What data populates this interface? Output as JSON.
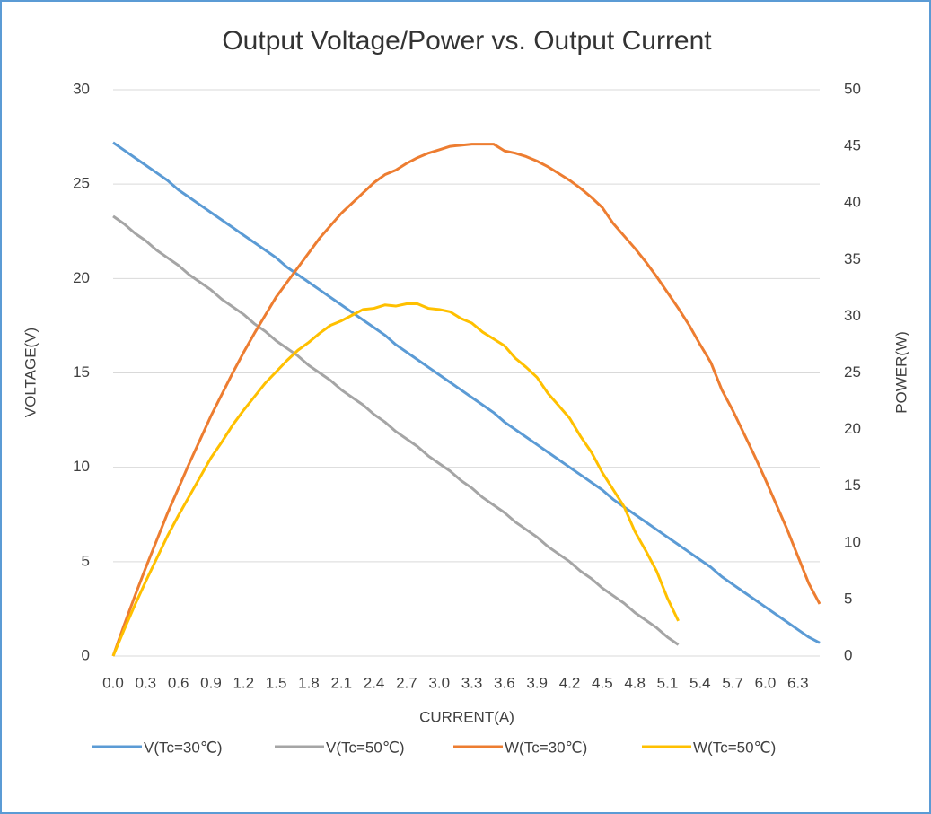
{
  "chart_data": {
    "type": "line",
    "title": "Output Voltage/Power vs. Output Current",
    "x_label": "CURRENT(A)",
    "y_label": "VOLTAGE(V)",
    "y2_label": "POWER(W)",
    "categories": [
      "0.0",
      null,
      null,
      "0.3",
      null,
      null,
      "0.6",
      null,
      null,
      "0.9",
      null,
      null,
      "1.2",
      null,
      null,
      "1.5",
      null,
      null,
      "1.8",
      null,
      null,
      "2.1",
      null,
      null,
      "2.4",
      null,
      null,
      "2.7",
      null,
      null,
      "3.0",
      null,
      null,
      "3.3",
      null,
      null,
      "3.6",
      null,
      null,
      "3.9",
      null,
      null,
      "4.2",
      null,
      null,
      "4.5",
      null,
      null,
      "4.8",
      null,
      null,
      "5.1",
      null,
      null,
      "5.4",
      null,
      null,
      "5.7",
      null,
      null,
      "6.0",
      null,
      null,
      "6.3",
      null,
      null
    ],
    "ylim": [
      0,
      30
    ],
    "yticks": [
      0,
      5,
      10,
      15,
      20,
      25,
      30
    ],
    "y2lim": [
      0,
      50
    ],
    "y2ticks": [
      0,
      5,
      10,
      15,
      20,
      25,
      30,
      35,
      40,
      45,
      50
    ],
    "grid": true,
    "legend": "bottom",
    "series": [
      {
        "name": "V(Tc=30℃)",
        "color": "#5b9bd5",
        "values": [
          27.2,
          26.8,
          26.4,
          26.0,
          25.6,
          25.2,
          24.7,
          24.3,
          23.9,
          23.5,
          23.1,
          22.7,
          22.3,
          21.9,
          21.5,
          21.1,
          20.6,
          20.2,
          19.8,
          19.4,
          19.0,
          18.6,
          18.2,
          17.8,
          17.4,
          17.0,
          16.5,
          16.1,
          15.7,
          15.3,
          14.9,
          14.5,
          14.1,
          13.7,
          13.3,
          12.9,
          12.4,
          12.0,
          11.6,
          11.2,
          10.8,
          10.4,
          10.0,
          9.6,
          9.2,
          8.8,
          8.3,
          7.9,
          7.5,
          7.1,
          6.7,
          6.3,
          5.9,
          5.5,
          5.1,
          4.7,
          4.2,
          3.8,
          3.4,
          3.0,
          2.6,
          2.2,
          1.8,
          1.4,
          1.0,
          0.7
        ]
      },
      {
        "name": "V(Tc=50℃)",
        "color": "#a5a5a5",
        "values": [
          23.3,
          22.9,
          22.4,
          22.0,
          21.5,
          21.1,
          20.7,
          20.2,
          19.8,
          19.4,
          18.9,
          18.5,
          18.1,
          17.6,
          17.2,
          16.7,
          16.3,
          15.9,
          15.4,
          15.0,
          14.6,
          14.1,
          13.7,
          13.3,
          12.8,
          12.4,
          11.9,
          11.5,
          11.1,
          10.6,
          10.2,
          9.8,
          9.3,
          8.9,
          8.4,
          8.0,
          7.6,
          7.1,
          6.7,
          6.3,
          5.8,
          5.4,
          5.0,
          4.5,
          4.1,
          3.6,
          3.2,
          2.8,
          2.3,
          1.9,
          1.5,
          1.0,
          0.6,
          null,
          null,
          null,
          null,
          null,
          null,
          null,
          null,
          null,
          null,
          null,
          null,
          null
        ]
      },
      {
        "name": "W(Tc=30℃)",
        "color": "#ed7d31",
        "axis": "y2",
        "values": [
          0,
          2.7,
          5.3,
          7.8,
          10.2,
          12.6,
          14.8,
          17.0,
          19.1,
          21.2,
          23.1,
          25.0,
          26.8,
          28.5,
          30.1,
          31.7,
          33.0,
          34.3,
          35.6,
          36.9,
          38.0,
          39.1,
          40.0,
          40.9,
          41.8,
          42.5,
          42.9,
          43.5,
          44.0,
          44.4,
          44.7,
          45.0,
          45.1,
          45.2,
          45.2,
          45.2,
          44.6,
          44.4,
          44.1,
          43.7,
          43.2,
          42.6,
          42.0,
          41.3,
          40.5,
          39.6,
          38.2,
          37.1,
          36.0,
          34.8,
          33.5,
          32.1,
          30.7,
          29.2,
          27.5,
          25.9,
          23.5,
          21.7,
          19.7,
          17.7,
          15.6,
          13.4,
          11.2,
          8.8,
          6.4,
          4.6
        ]
      },
      {
        "name": "W(Tc=50℃)",
        "color": "#ffc000",
        "axis": "y2",
        "values": [
          0,
          2.3,
          4.5,
          6.6,
          8.6,
          10.6,
          12.4,
          14.1,
          15.8,
          17.5,
          18.9,
          20.4,
          21.7,
          22.9,
          24.1,
          25.1,
          26.1,
          27.0,
          27.7,
          28.5,
          29.2,
          29.6,
          30.1,
          30.6,
          30.7,
          31.0,
          30.9,
          31.1,
          31.1,
          30.7,
          30.6,
          30.4,
          29.8,
          29.4,
          28.6,
          28.0,
          27.4,
          26.3,
          25.5,
          24.6,
          23.2,
          22.1,
          21.0,
          19.4,
          18.0,
          16.2,
          14.7,
          13.2,
          11.0,
          9.3,
          7.5,
          5.1,
          3.1,
          null,
          null,
          null,
          null,
          null,
          null,
          null,
          null,
          null,
          null,
          null,
          null,
          null
        ]
      }
    ]
  }
}
